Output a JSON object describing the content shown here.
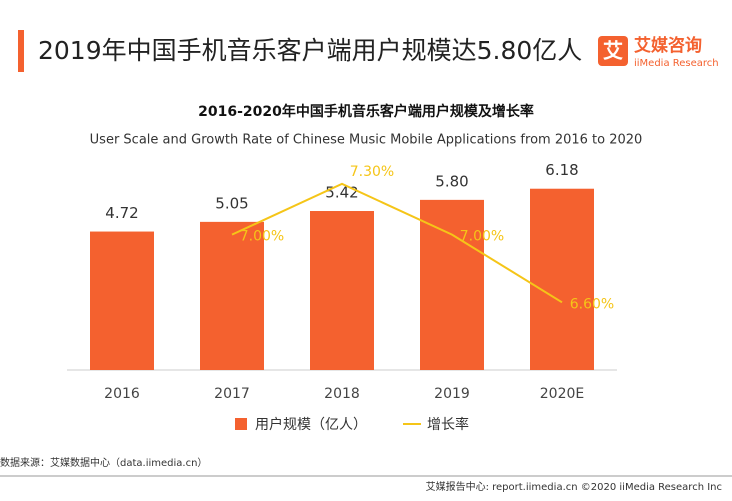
{
  "header": {
    "title": "2019年中国手机音乐客户端用户规模达5.80亿人",
    "logo_icon": "艾",
    "logo_name": "艾媒咨询",
    "logo_sub": "iiMedia Research"
  },
  "chart_data": {
    "type": "bar",
    "title": "2016-2020年中国手机音乐客户端用户规模及增长率",
    "subtitle": "User Scale and Growth Rate of Chinese Music Mobile Applications from 2016 to 2020",
    "categories": [
      "2016",
      "2017",
      "2018",
      "2019",
      "2020E"
    ],
    "ylim": [
      0,
      7.5
    ],
    "y2lim": [
      6.2,
      7.5
    ],
    "series": [
      {
        "name": "用户规模（亿人）",
        "type": "bar",
        "color": "#f4612f",
        "values": [
          4.72,
          5.05,
          5.42,
          5.8,
          6.18
        ],
        "value_labels": [
          "4.72",
          "5.05",
          "5.42",
          "5.80",
          "6.18"
        ]
      },
      {
        "name": "增长率",
        "type": "line",
        "axis": "y2",
        "color": "#f5c518",
        "values": [
          null,
          7.0,
          7.3,
          7.0,
          6.6
        ],
        "value_labels": [
          null,
          "7.00%",
          "7.30%",
          "7.00%",
          "6.60%"
        ]
      }
    ]
  },
  "footer": {
    "source": "数据来源：艾媒数据中心（data.iimedia.cn）",
    "credit": "艾媒报告中心: report.iimedia.cn  ©2020  iiMedia Research  Inc"
  }
}
